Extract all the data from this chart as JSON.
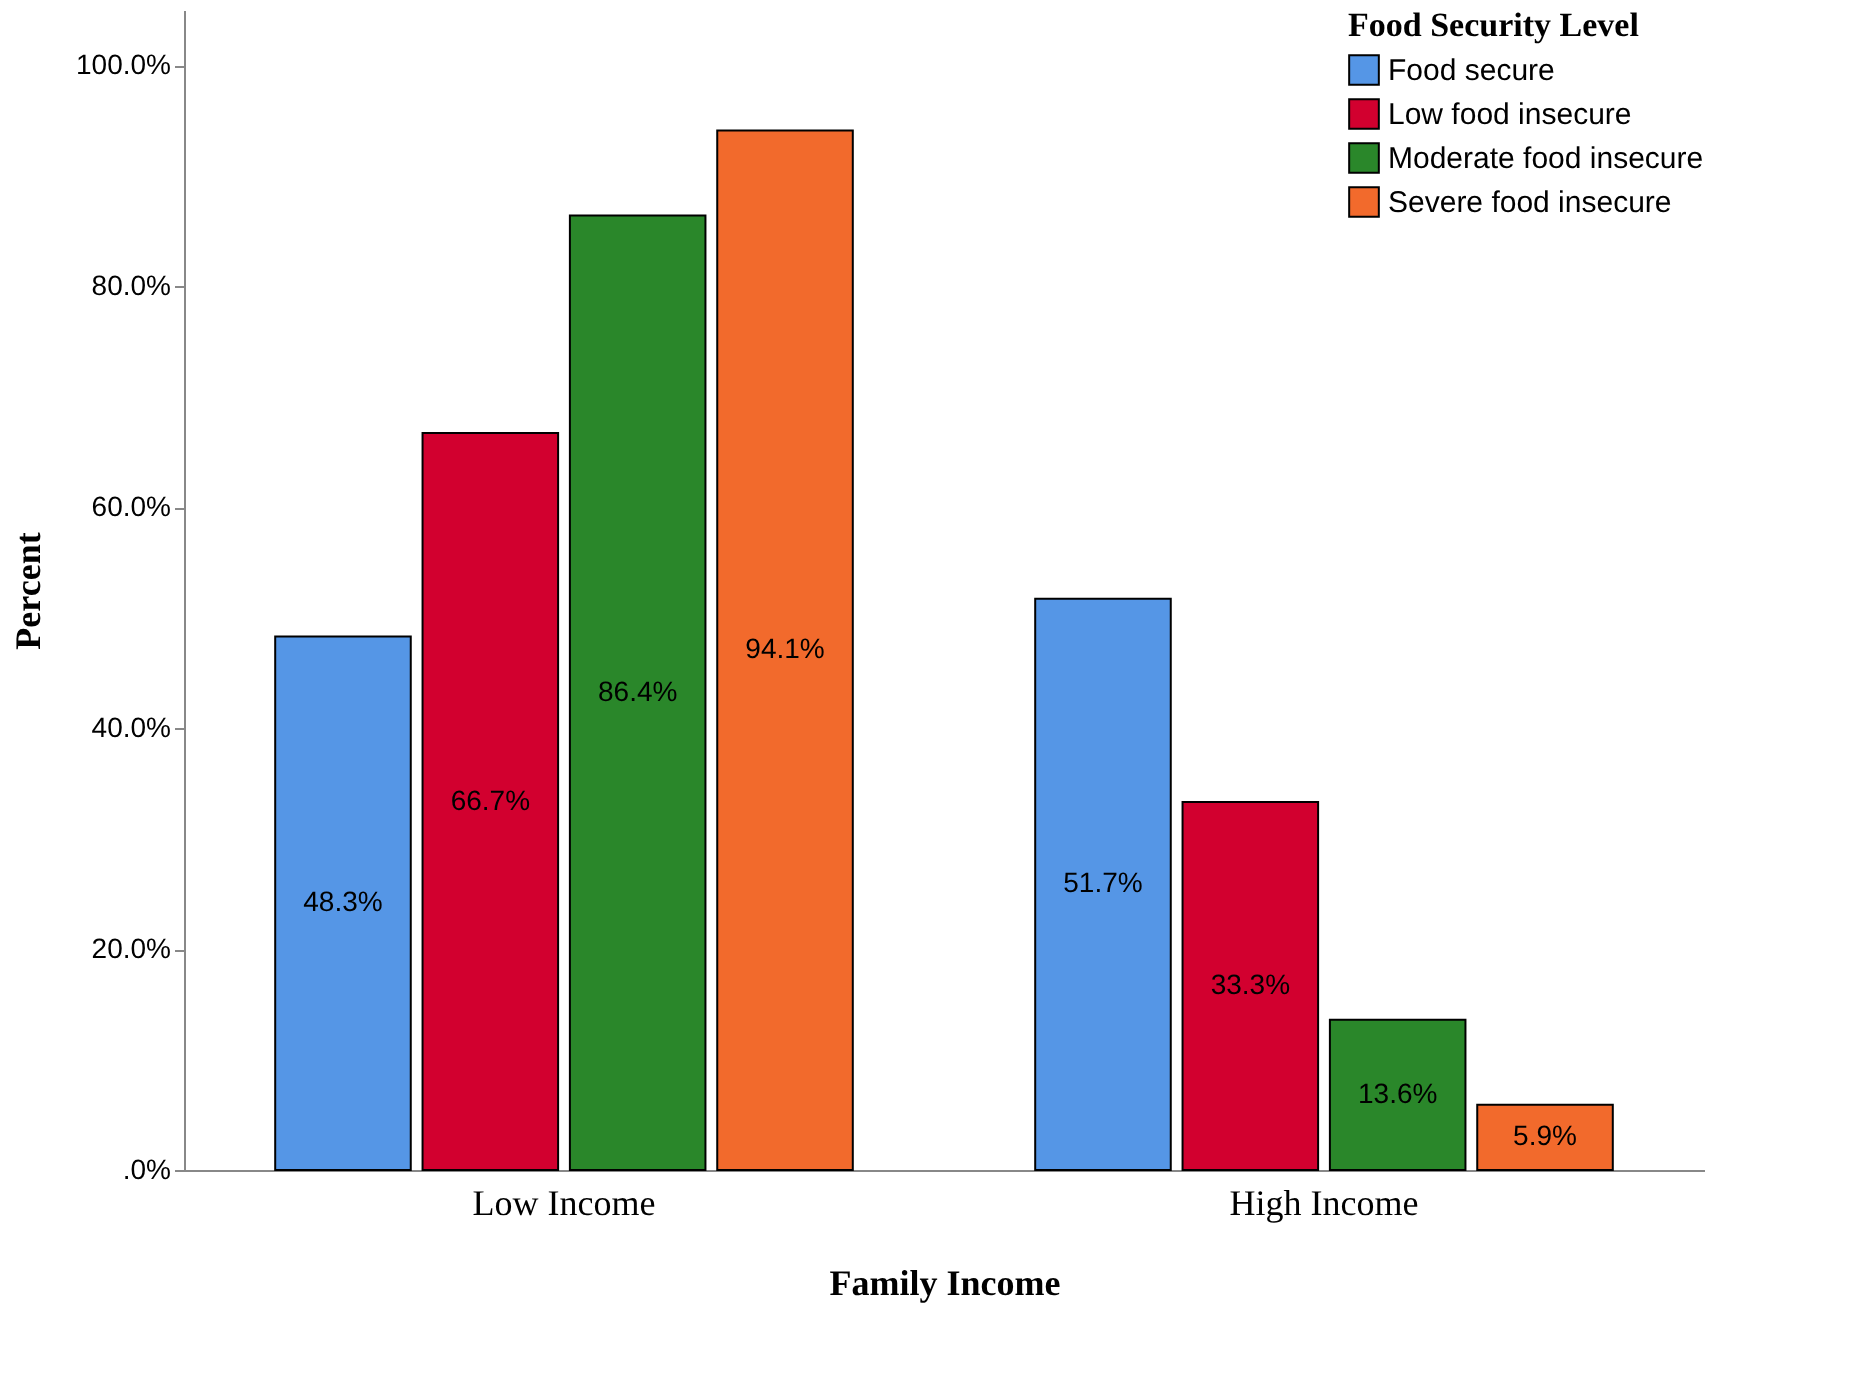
{
  "chart_data": {
    "type": "bar",
    "xlabel": "Family Income",
    "ylabel": "Percent",
    "legend_title": "Food Security Level",
    "legend": "top right",
    "grid": false,
    "categories": [
      "Low Income",
      "High Income"
    ],
    "series": [
      {
        "name": "Food secure",
        "color": "#5596e6",
        "values": [
          48.3,
          51.7
        ],
        "value_labels": [
          "48.3%",
          "51.7%"
        ]
      },
      {
        "name": "Low food insecure",
        "color": "#d2002f",
        "values": [
          66.7,
          33.3
        ],
        "value_labels": [
          "66.7%",
          "33.3%"
        ]
      },
      {
        "name": "Moderate food insecure",
        "color": "#2a872a",
        "values": [
          86.4,
          13.6
        ],
        "value_labels": [
          "86.4%",
          "13.6%"
        ]
      },
      {
        "name": "Severe food insecure",
        "color": "#f26a2c",
        "values": [
          94.1,
          5.9
        ],
        "value_labels": [
          "94.1%",
          "5.9%"
        ]
      }
    ],
    "ylim": [
      0,
      105
    ],
    "yticks": [
      {
        "value": 0,
        "label": ".0%"
      },
      {
        "value": 20,
        "label": "20.0%"
      },
      {
        "value": 40,
        "label": "40.0%"
      },
      {
        "value": 60,
        "label": "60.0%"
      },
      {
        "value": 80,
        "label": "80.0%"
      },
      {
        "value": 100,
        "label": "100.0%"
      }
    ]
  }
}
